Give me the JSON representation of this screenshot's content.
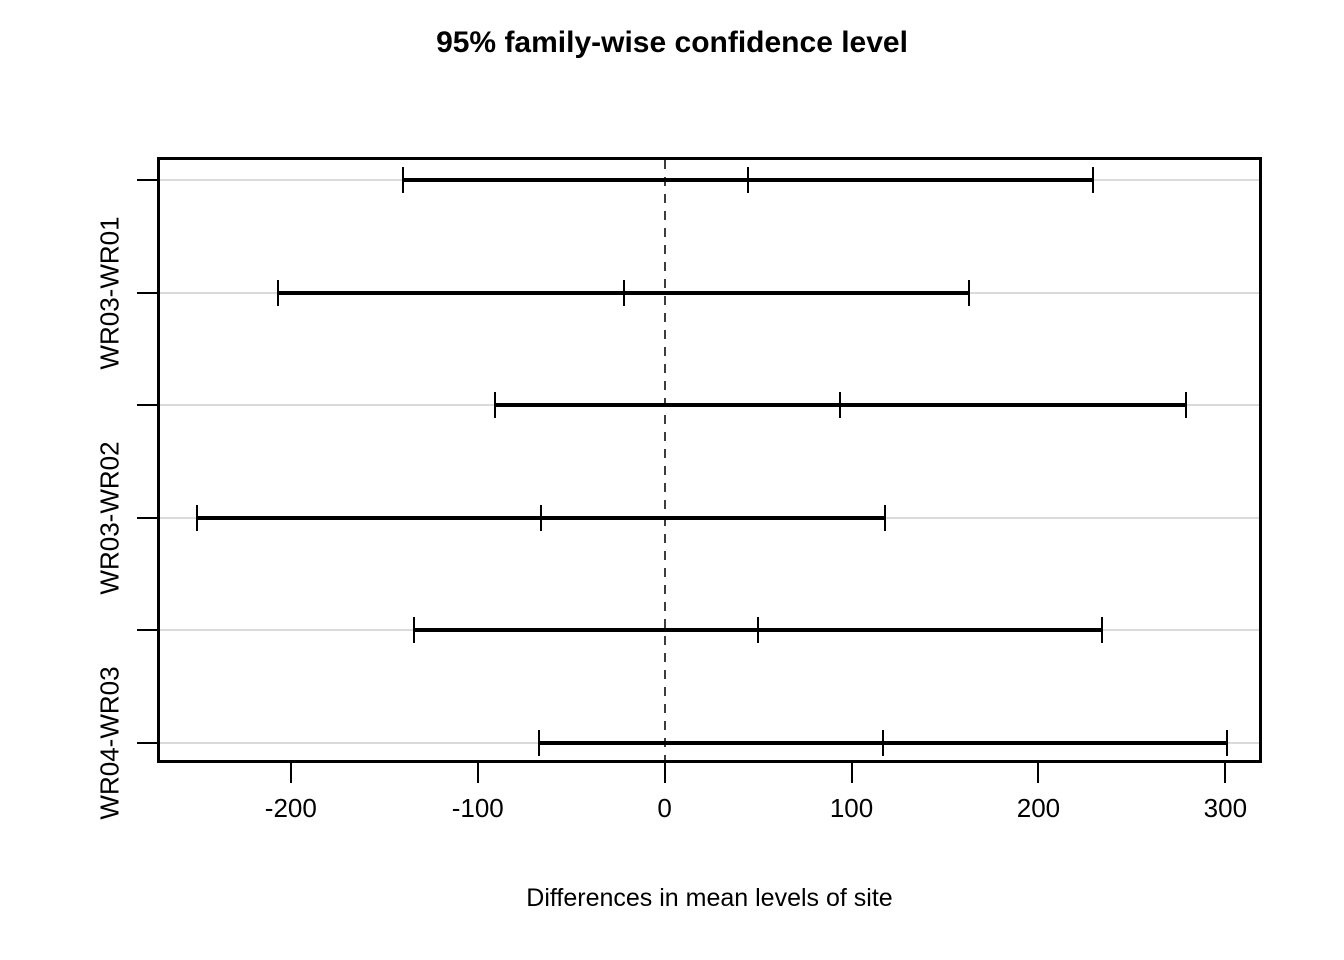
{
  "chart_data": {
    "type": "tukey_hsd_confidence_intervals",
    "title": "95% family-wise confidence level",
    "xlabel": "Differences in mean levels of site",
    "xlim": [
      -270,
      318
    ],
    "x_ticks": [
      -200,
      -100,
      0,
      100,
      200,
      300
    ],
    "grid": "horizontal-light",
    "legend": "none",
    "reference_line": {
      "x": 0,
      "style": "dashed"
    },
    "comparisons": [
      {
        "label": "",
        "lwr": -140,
        "diff": 44.5,
        "upr": 229
      },
      {
        "label": "WR03-WR01",
        "lwr": -207,
        "diff": -22,
        "upr": 163
      },
      {
        "label": "",
        "lwr": -91,
        "diff": 94,
        "upr": 279
      },
      {
        "label": "WR03-WR02",
        "lwr": -250,
        "diff": -66,
        "upr": 118
      },
      {
        "label": "",
        "lwr": -134,
        "diff": 50,
        "upr": 234
      },
      {
        "label": "WR04-WR03",
        "lwr": -67,
        "diff": 117,
        "upr": 301
      }
    ],
    "colors": {
      "interval": "#000000",
      "grid": "#dadada",
      "reference": "#3d3d3d",
      "box": "#000000",
      "text": "#000000"
    }
  }
}
